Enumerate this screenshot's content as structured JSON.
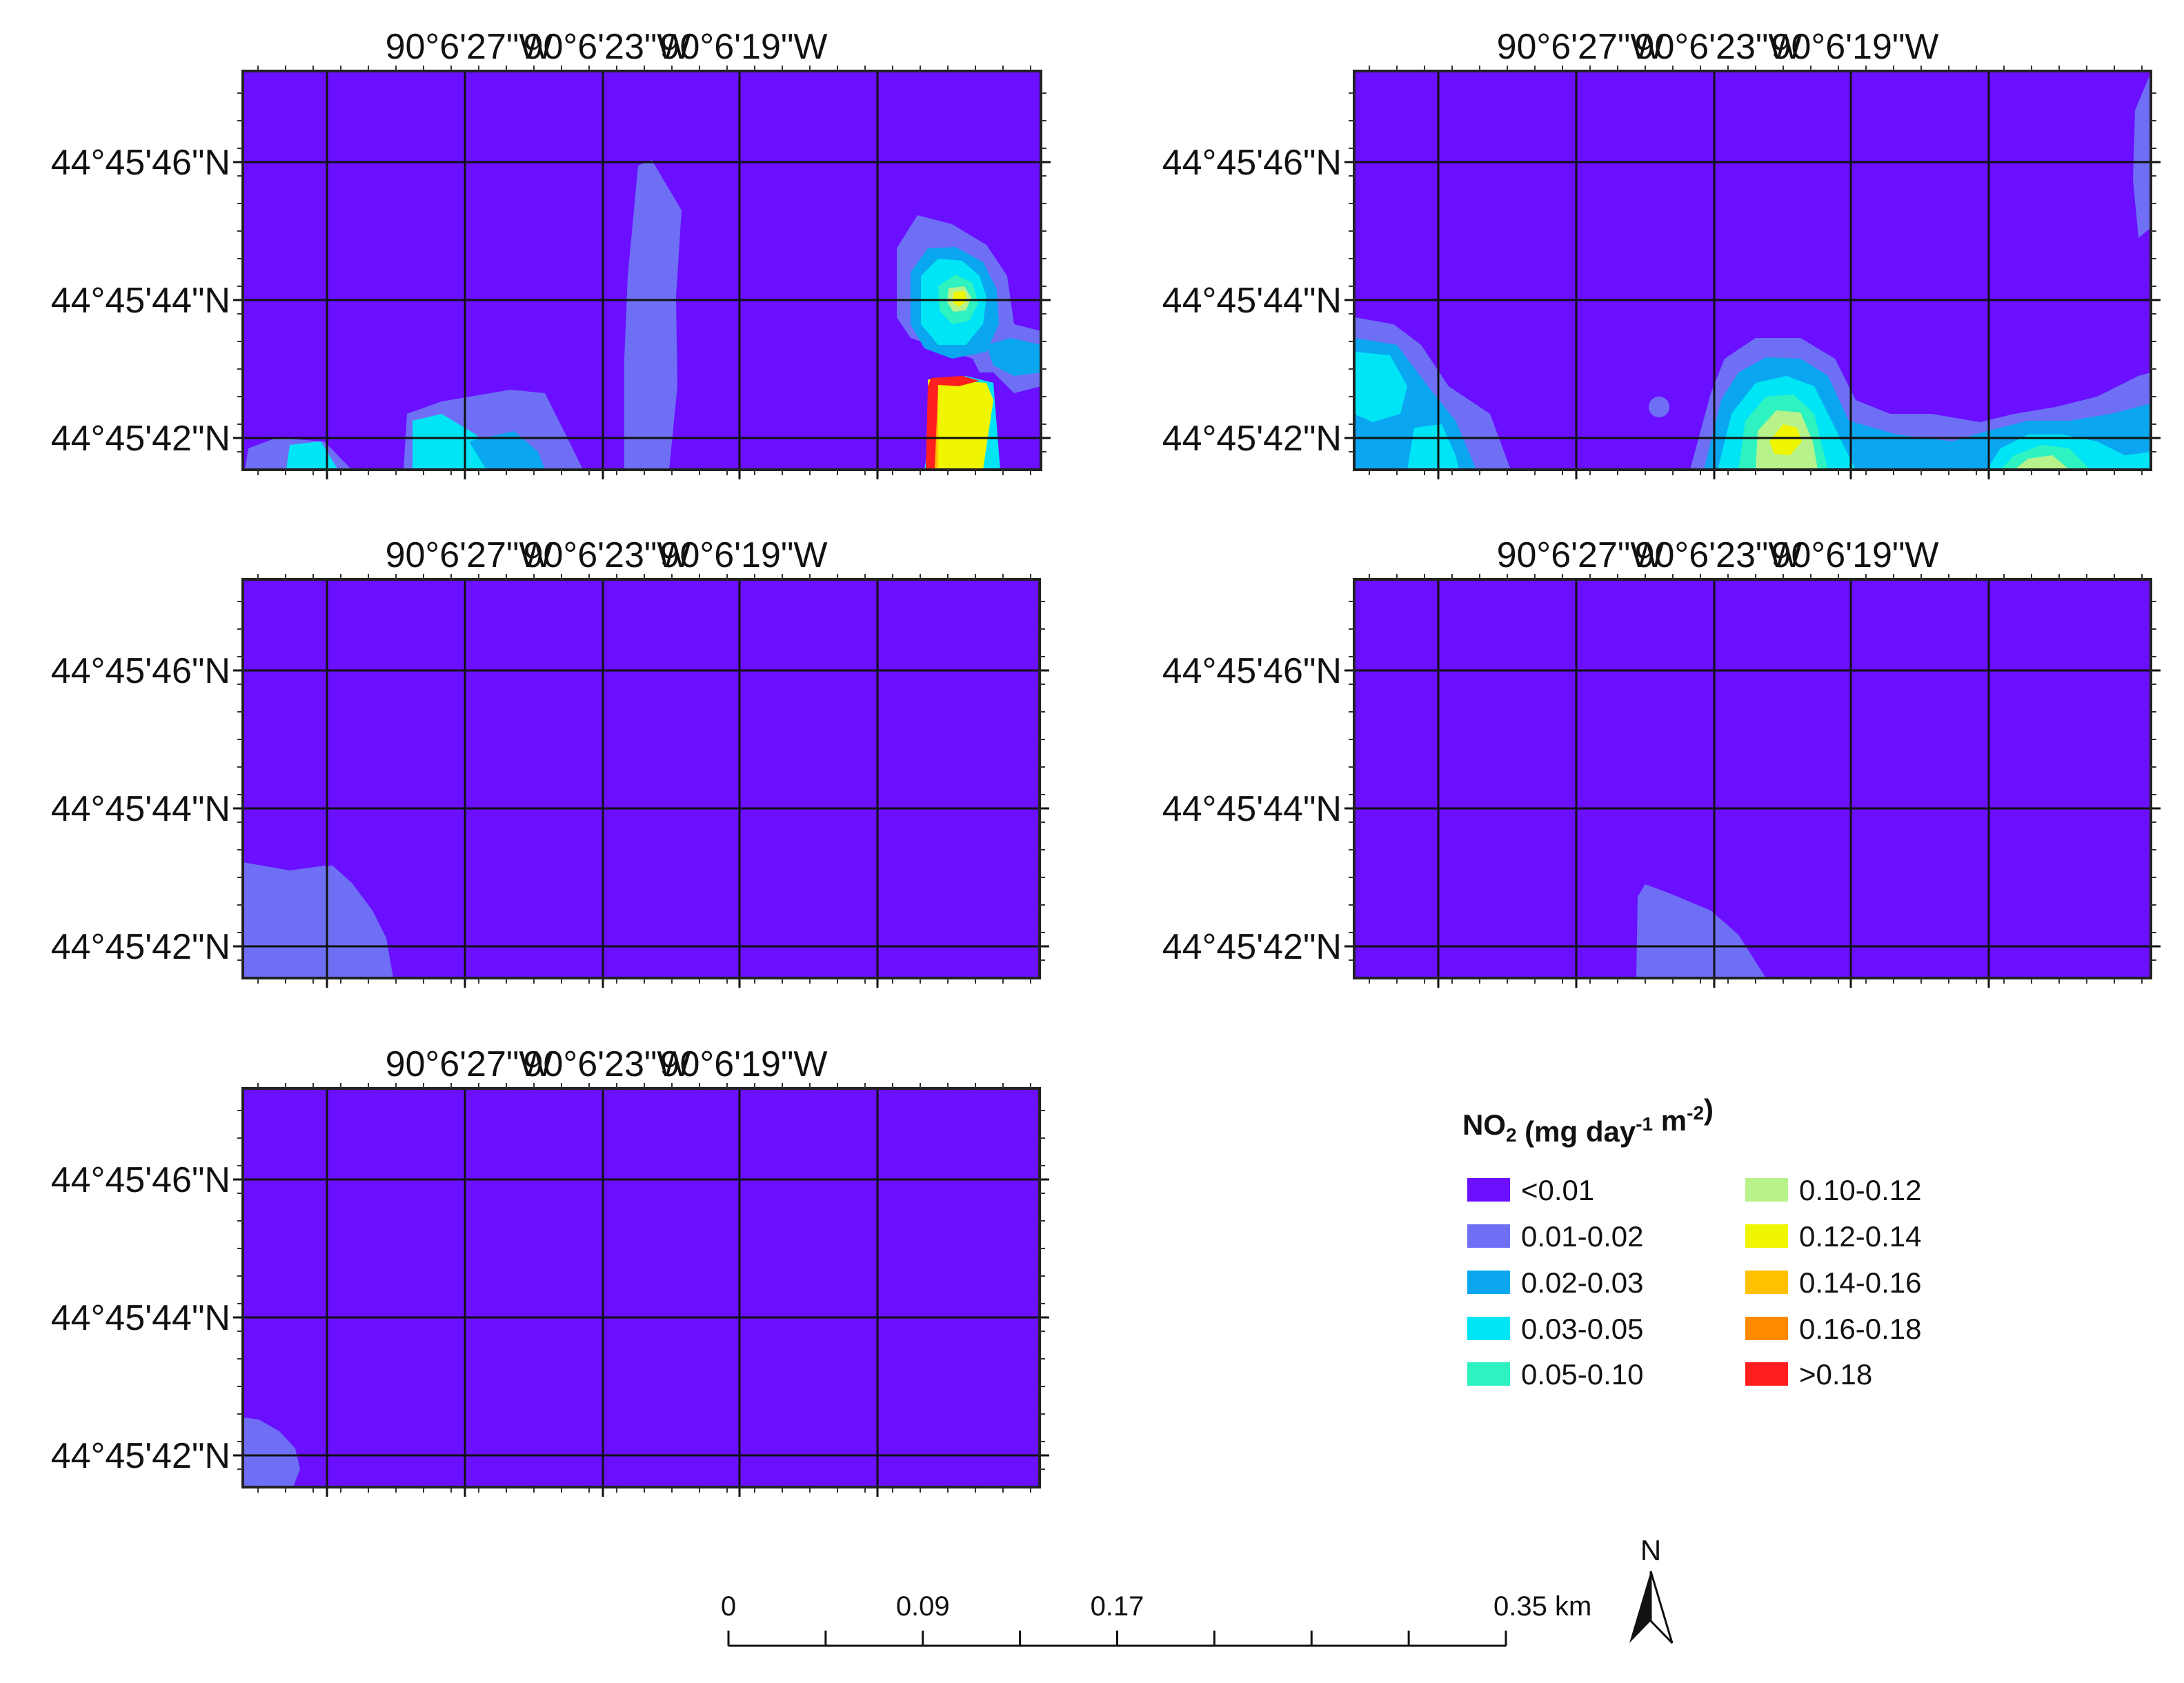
{
  "maps": {
    "lon_labels": [
      "90°6'27\"W",
      "90°6'23\"W",
      "90°6'19\"W"
    ],
    "lat_labels": [
      "44°45'46\"N",
      "44°45'44\"N",
      "44°45'42\"N"
    ]
  },
  "legend": {
    "title_main": "NO",
    "title_sub": "2",
    "title_unit1": " (mg day",
    "title_exp1": "-1",
    "title_unit2": " m",
    "title_exp2": "-2",
    "title_close": ")",
    "classes": [
      {
        "label": "<0.01",
        "color": "#6a0fff"
      },
      {
        "label": "0.01-0.02",
        "color": "#6e6ff5"
      },
      {
        "label": "0.02-0.03",
        "color": "#0aa6f0"
      },
      {
        "label": "0.03-0.05",
        "color": "#00e5f5"
      },
      {
        "label": "0.05-0.10",
        "color": "#2ef2c0"
      },
      {
        "label": "0.10-0.12",
        "color": "#b7f28a"
      },
      {
        "label": "0.12-0.14",
        "color": "#f0f500"
      },
      {
        "label": "0.14-0.16",
        "color": "#ffc000"
      },
      {
        "label": "0.16-0.18",
        "color": "#ff8a00"
      },
      {
        "label": ">0.18",
        "color": "#ff1f1f"
      }
    ]
  },
  "scale_bar": {
    "labels": [
      "0",
      "0.09",
      "0.17",
      "0.35 km"
    ]
  },
  "north_arrow": {
    "label": "N"
  }
}
